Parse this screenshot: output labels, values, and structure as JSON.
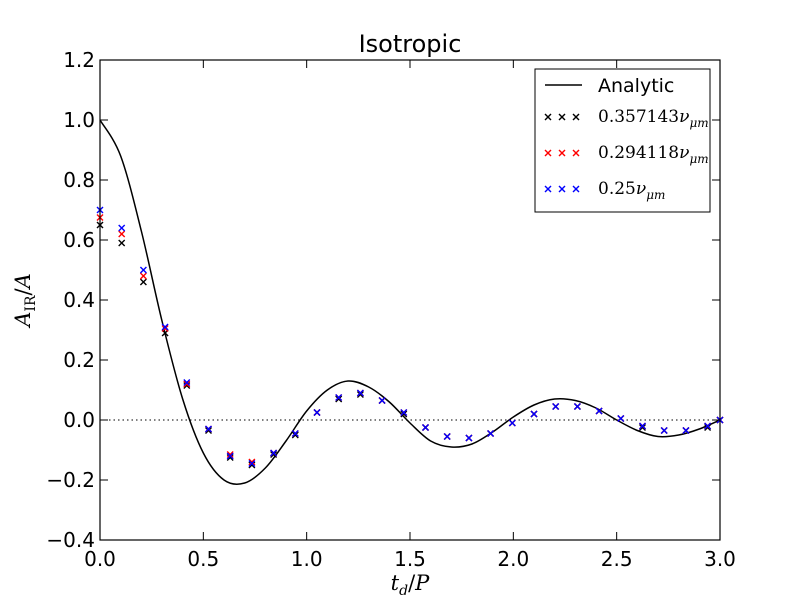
{
  "chart_data": {
    "type": "line",
    "title": "Isotropic",
    "xlabel": "t_d / P",
    "ylabel": "A_IR / A",
    "xlim": [
      0.0,
      3.0
    ],
    "ylim": [
      -0.4,
      1.2
    ],
    "xticks": [
      "0.0",
      "0.5",
      "1.0",
      "1.5",
      "2.0",
      "2.5",
      "3.0"
    ],
    "yticks": [
      "−0.4",
      "−0.2",
      "0.0",
      "0.2",
      "0.4",
      "0.6",
      "0.8",
      "1.0",
      "1.2"
    ],
    "legend_position": "top-right",
    "reference_line_y": 0.0,
    "analytic": {
      "name": "Analytic",
      "color": "#000000",
      "x": [
        0.0,
        0.1,
        0.2,
        0.3,
        0.4,
        0.5,
        0.6,
        0.7,
        0.8,
        0.9,
        1.0,
        1.1,
        1.2,
        1.3,
        1.4,
        1.5,
        1.6,
        1.7,
        1.8,
        1.9,
        2.0,
        2.1,
        2.2,
        2.3,
        2.4,
        2.5,
        2.6,
        2.7,
        2.8,
        2.9,
        3.0
      ],
      "y": [
        1.0,
        0.88,
        0.63,
        0.33,
        0.07,
        -0.11,
        -0.2,
        -0.21,
        -0.16,
        -0.07,
        0.03,
        0.1,
        0.13,
        0.11,
        0.06,
        -0.01,
        -0.07,
        -0.09,
        -0.08,
        -0.04,
        0.01,
        0.05,
        0.07,
        0.065,
        0.04,
        0.0,
        -0.035,
        -0.055,
        -0.05,
        -0.03,
        0.0
      ]
    },
    "series": [
      {
        "name": "0.357143ν_μm",
        "color": "#000000",
        "x": [
          0.0,
          0.105,
          0.21,
          0.315,
          0.42,
          0.525,
          0.63,
          0.735,
          0.84,
          0.945,
          1.05,
          1.155,
          1.26,
          1.365,
          1.47,
          1.575,
          1.68,
          1.785,
          1.89,
          1.995,
          2.1,
          2.205,
          2.31,
          2.415,
          2.52,
          2.625,
          2.73,
          2.835,
          2.94,
          3.0
        ],
        "y": [
          0.65,
          0.59,
          0.46,
          0.29,
          0.115,
          -0.035,
          -0.125,
          -0.15,
          -0.115,
          -0.05,
          0.025,
          0.07,
          0.085,
          0.065,
          0.02,
          -0.025,
          -0.055,
          -0.06,
          -0.045,
          -0.01,
          0.02,
          0.045,
          0.045,
          0.03,
          0.005,
          -0.025,
          -0.035,
          -0.035,
          -0.025,
          0.0
        ]
      },
      {
        "name": "0.294118ν_μm",
        "color": "#ff0000",
        "x": [
          0.0,
          0.105,
          0.21,
          0.315,
          0.42,
          0.525,
          0.63,
          0.735,
          0.84,
          0.945,
          1.05,
          1.155,
          1.26,
          1.365,
          1.47,
          1.575,
          1.68,
          1.785,
          1.89,
          1.995,
          2.1,
          2.205,
          2.31,
          2.415,
          2.52,
          2.625,
          2.73,
          2.835,
          2.94,
          3.0
        ],
        "y": [
          0.675,
          0.62,
          0.48,
          0.305,
          0.12,
          -0.03,
          -0.115,
          -0.14,
          -0.11,
          -0.045,
          0.025,
          0.075,
          0.09,
          0.065,
          0.025,
          -0.025,
          -0.055,
          -0.06,
          -0.045,
          -0.01,
          0.02,
          0.045,
          0.045,
          0.03,
          0.005,
          -0.02,
          -0.035,
          -0.035,
          -0.02,
          0.0
        ]
      },
      {
        "name": "0.25ν_μm",
        "color": "#0000ff",
        "x": [
          0.0,
          0.105,
          0.21,
          0.315,
          0.42,
          0.525,
          0.63,
          0.735,
          0.84,
          0.945,
          1.05,
          1.155,
          1.26,
          1.365,
          1.47,
          1.575,
          1.68,
          1.785,
          1.89,
          1.995,
          2.1,
          2.205,
          2.31,
          2.415,
          2.52,
          2.625,
          2.73,
          2.835,
          2.94,
          3.0
        ],
        "y": [
          0.7,
          0.64,
          0.5,
          0.31,
          0.125,
          -0.03,
          -0.12,
          -0.145,
          -0.11,
          -0.045,
          0.025,
          0.075,
          0.09,
          0.065,
          0.025,
          -0.025,
          -0.055,
          -0.06,
          -0.045,
          -0.01,
          0.02,
          0.045,
          0.045,
          0.03,
          0.005,
          -0.02,
          -0.035,
          -0.035,
          -0.02,
          0.0
        ]
      }
    ]
  }
}
